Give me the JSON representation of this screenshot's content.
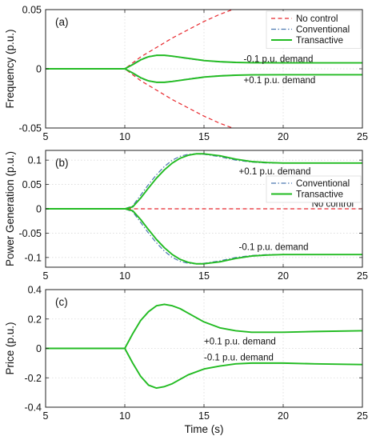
{
  "chart_data": [
    {
      "type": "line",
      "panel_label": "(a)",
      "xlabel": "",
      "ylabel": "Frequency (p.u.)",
      "xlim": [
        5,
        25
      ],
      "ylim": [
        -0.05,
        0.05
      ],
      "xticks": [
        5,
        10,
        15,
        20,
        25
      ],
      "yticks": [
        -0.05,
        0,
        0.05
      ],
      "ytick_labels": [
        "-0.05",
        "0",
        "0.05"
      ],
      "grid": true,
      "legend": {
        "position": "top-right",
        "entries": [
          "No control",
          "Conventional",
          "Transactive"
        ]
      },
      "annotations": [
        {
          "text": "-0.1 p.u. demand",
          "x": 17.5,
          "y": 0.0085
        },
        {
          "text": "+0.1 p.u. demand",
          "x": 17.5,
          "y": -0.0095
        }
      ],
      "series": [
        {
          "name": "No control",
          "color": "#e8282d",
          "style": "dashed",
          "x": [
            5,
            10,
            11,
            12,
            13,
            14,
            15,
            16,
            17,
            18,
            19,
            20,
            22,
            25
          ],
          "y": [
            0,
            0,
            0.01,
            0.018,
            0.026,
            0.033,
            0.04,
            0.046,
            0.051,
            0.056,
            0.06,
            0.064,
            0.071,
            0.08
          ]
        },
        {
          "name": "No control",
          "color": "#e8282d",
          "style": "dashed",
          "x": [
            5,
            10,
            11,
            12,
            13,
            14,
            15,
            16,
            17,
            18,
            19,
            20,
            22,
            25
          ],
          "y": [
            0,
            0,
            -0.01,
            -0.018,
            -0.026,
            -0.033,
            -0.04,
            -0.046,
            -0.051,
            -0.056,
            -0.06,
            -0.064,
            -0.071,
            -0.08
          ]
        },
        {
          "name": "Conventional",
          "color": "#4a78b0",
          "style": "dashdot",
          "x": [
            5,
            10,
            10.5,
            11,
            11.5,
            12,
            12.5,
            13,
            14,
            15,
            16,
            17,
            18,
            20,
            22,
            25
          ],
          "y": [
            0,
            0,
            0.004,
            0.008,
            0.0105,
            0.0115,
            0.0113,
            0.0105,
            0.0085,
            0.0068,
            0.0058,
            0.0053,
            0.0051,
            0.005,
            0.005,
            0.005
          ]
        },
        {
          "name": "Conventional",
          "color": "#4a78b0",
          "style": "dashdot",
          "x": [
            5,
            10,
            10.5,
            11,
            11.5,
            12,
            12.5,
            13,
            14,
            15,
            16,
            17,
            18,
            20,
            22,
            25
          ],
          "y": [
            0,
            0,
            -0.004,
            -0.008,
            -0.0105,
            -0.0115,
            -0.0113,
            -0.0105,
            -0.0085,
            -0.0068,
            -0.0058,
            -0.0053,
            -0.0051,
            -0.005,
            -0.005,
            -0.005
          ]
        },
        {
          "name": "Transactive",
          "color": "#22bb22",
          "style": "solid",
          "x": [
            5,
            10,
            10.5,
            11,
            11.5,
            12,
            12.5,
            13,
            14,
            15,
            16,
            17,
            18,
            20,
            22,
            25
          ],
          "y": [
            0,
            0,
            0.0035,
            0.0075,
            0.0102,
            0.0114,
            0.0114,
            0.0107,
            0.0088,
            0.007,
            0.006,
            0.0054,
            0.0051,
            0.005,
            0.005,
            0.005
          ]
        },
        {
          "name": "Transactive",
          "color": "#22bb22",
          "style": "solid",
          "x": [
            5,
            10,
            10.5,
            11,
            11.5,
            12,
            12.5,
            13,
            14,
            15,
            16,
            17,
            18,
            20,
            22,
            25
          ],
          "y": [
            0,
            0,
            -0.0035,
            -0.0075,
            -0.0102,
            -0.0114,
            -0.0114,
            -0.0107,
            -0.0088,
            -0.007,
            -0.006,
            -0.0054,
            -0.0051,
            -0.005,
            -0.005,
            -0.005
          ]
        }
      ]
    },
    {
      "type": "line",
      "panel_label": "(b)",
      "xlabel": "",
      "ylabel": "Power Generation (p.u.)",
      "xlim": [
        5,
        25
      ],
      "ylim": [
        -0.12,
        0.12
      ],
      "xticks": [
        5,
        10,
        15,
        20,
        25
      ],
      "yticks": [
        -0.1,
        -0.05,
        0,
        0.05,
        0.1
      ],
      "ytick_labels": [
        "-0.1",
        "-0.05",
        "0",
        "0.05",
        "0.1"
      ],
      "grid": true,
      "legend": {
        "position": "middle-right",
        "entries": [
          "Conventional",
          "Transactive"
        ]
      },
      "annotations": [
        {
          "text": "+0.1 p.u. demand",
          "x": 17.2,
          "y": 0.077
        },
        {
          "text": "No control",
          "x": 21.8,
          "y": 0.011
        },
        {
          "text": "-0.1 p.u. demand",
          "x": 17.2,
          "y": -0.078
        }
      ],
      "series": [
        {
          "name": "No control",
          "color": "#e8282d",
          "style": "dashed",
          "x": [
            5,
            25
          ],
          "y": [
            0,
            0
          ]
        },
        {
          "name": "Conventional",
          "color": "#4a78b0",
          "style": "dashdot",
          "x": [
            5,
            10,
            10.5,
            11,
            11.5,
            12,
            12.5,
            13,
            13.5,
            14,
            14.5,
            15,
            16,
            17,
            18,
            19,
            20,
            22,
            25
          ],
          "y": [
            0,
            0,
            0.006,
            0.028,
            0.05,
            0.07,
            0.087,
            0.1,
            0.108,
            0.112,
            0.113,
            0.112,
            0.107,
            0.1,
            0.096,
            0.094,
            0.094,
            0.094,
            0.094
          ]
        },
        {
          "name": "Conventional",
          "color": "#4a78b0",
          "style": "dashdot",
          "x": [
            5,
            10,
            10.5,
            11,
            11.5,
            12,
            12.5,
            13,
            13.5,
            14,
            14.5,
            15,
            16,
            17,
            18,
            19,
            20,
            22,
            25
          ],
          "y": [
            0,
            0,
            -0.006,
            -0.028,
            -0.05,
            -0.07,
            -0.087,
            -0.1,
            -0.108,
            -0.112,
            -0.113,
            -0.112,
            -0.107,
            -0.1,
            -0.096,
            -0.094,
            -0.094,
            -0.094,
            -0.094
          ]
        },
        {
          "name": "Transactive",
          "color": "#22bb22",
          "style": "solid",
          "x": [
            5,
            10,
            10.5,
            11,
            11.5,
            12,
            12.5,
            13,
            13.5,
            14,
            14.5,
            15,
            16,
            17,
            18,
            19,
            20,
            22,
            25
          ],
          "y": [
            0,
            0,
            0.004,
            0.022,
            0.043,
            0.063,
            0.08,
            0.094,
            0.104,
            0.11,
            0.113,
            0.113,
            0.109,
            0.102,
            0.097,
            0.095,
            0.094,
            0.094,
            0.094
          ]
        },
        {
          "name": "Transactive",
          "color": "#22bb22",
          "style": "solid",
          "x": [
            5,
            10,
            10.5,
            11,
            11.5,
            12,
            12.5,
            13,
            13.5,
            14,
            14.5,
            15,
            16,
            17,
            18,
            19,
            20,
            22,
            25
          ],
          "y": [
            0,
            0,
            -0.004,
            -0.022,
            -0.043,
            -0.063,
            -0.08,
            -0.094,
            -0.104,
            -0.11,
            -0.113,
            -0.113,
            -0.109,
            -0.102,
            -0.097,
            -0.095,
            -0.094,
            -0.094,
            -0.094
          ]
        }
      ]
    },
    {
      "type": "line",
      "panel_label": "(c)",
      "xlabel": "Time (s)",
      "ylabel": "Price (p.u.)",
      "xlim": [
        5,
        25
      ],
      "ylim": [
        -0.4,
        0.4
      ],
      "xticks": [
        5,
        10,
        15,
        20,
        25
      ],
      "yticks": [
        -0.4,
        -0.2,
        0,
        0.2,
        0.4
      ],
      "ytick_labels": [
        "-0.4",
        "-0.2",
        "0",
        "0.2",
        "0.4"
      ],
      "grid": true,
      "annotations": [
        {
          "text": "+0.1 p.u. demand",
          "x": 15,
          "y": 0.05
        },
        {
          "text": "-0.1 p.u. demand",
          "x": 15,
          "y": -0.06
        }
      ],
      "series": [
        {
          "name": "Transactive",
          "color": "#22bb22",
          "style": "solid",
          "x": [
            5,
            10,
            10.5,
            11,
            11.5,
            12,
            12.5,
            13,
            13.5,
            14,
            15,
            16,
            17,
            18,
            19,
            20,
            22,
            25
          ],
          "y": [
            0,
            0,
            0.1,
            0.19,
            0.25,
            0.29,
            0.3,
            0.29,
            0.27,
            0.24,
            0.18,
            0.14,
            0.12,
            0.11,
            0.11,
            0.11,
            0.115,
            0.12
          ]
        },
        {
          "name": "Transactive",
          "color": "#22bb22",
          "style": "solid",
          "x": [
            5,
            10,
            10.5,
            11,
            11.5,
            12,
            12.5,
            13,
            13.5,
            14,
            15,
            16,
            17,
            18,
            19,
            20,
            22,
            25
          ],
          "y": [
            0,
            0,
            -0.1,
            -0.19,
            -0.25,
            -0.27,
            -0.26,
            -0.24,
            -0.21,
            -0.18,
            -0.14,
            -0.12,
            -0.105,
            -0.1,
            -0.1,
            -0.1,
            -0.105,
            -0.11
          ]
        }
      ]
    }
  ]
}
